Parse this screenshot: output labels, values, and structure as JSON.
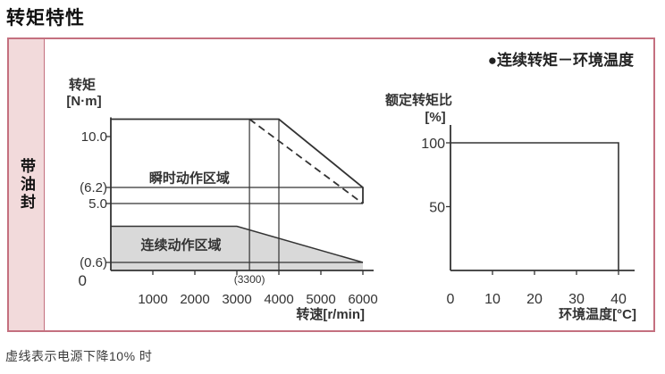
{
  "page": {
    "title": "转矩特性",
    "footnote": "虚线表示电源下降10% 时"
  },
  "table": {
    "row_header": "带油封",
    "border_color": "#c4707f",
    "row_header_bg": "#f2dadb"
  },
  "chart_data": [
    {
      "id": "torque-speed",
      "type": "line",
      "title": "",
      "xlabel": "转速[r/min]",
      "ylabel": [
        "转矩",
        "[N·m]"
      ],
      "x_origin_label": "0",
      "xlim": [
        0,
        6250
      ],
      "ylim": [
        0,
        11.3
      ],
      "x_ticks": [
        {
          "value": 1000,
          "label": "1000"
        },
        {
          "value": 2000,
          "label": "2000"
        },
        {
          "value": 3000,
          "label": "3000"
        },
        {
          "value": 4000,
          "label": "4000"
        },
        {
          "value": 5000,
          "label": "5000"
        },
        {
          "value": 6000,
          "label": "6000"
        }
      ],
      "x_annotation": {
        "value": 3300,
        "label": "(3300)"
      },
      "y_ticks": [
        {
          "value": 10.0,
          "label": "10.0"
        },
        {
          "value": 6.2,
          "label": "(6.2)"
        },
        {
          "value": 5.0,
          "label": "5.0"
        },
        {
          "value": 0.6,
          "label": "(0.6)"
        }
      ],
      "h_lines": [
        6.2,
        5.0,
        0.6
      ],
      "v_lines": [
        3300,
        4000
      ],
      "series": [
        {
          "name": "peak-boundary-solid",
          "style": "solid",
          "points": [
            [
              0,
              11.3
            ],
            [
              4000,
              11.3
            ],
            [
              6000,
              6.2
            ],
            [
              6000,
              5.0
            ]
          ]
        },
        {
          "name": "peak-boundary-dashed-power-drop-10pct",
          "style": "dashed",
          "points": [
            [
              3300,
              11.3
            ],
            [
              6000,
              5.0
            ]
          ]
        },
        {
          "name": "continuous-boundary",
          "style": "solid",
          "fill_to_axis": true,
          "points": [
            [
              0,
              3.3
            ],
            [
              3000,
              3.3
            ],
            [
              6000,
              0.6
            ]
          ]
        }
      ],
      "fill_color": "#d9d9d9",
      "line_color": "#333333",
      "regions": [
        {
          "label": "瞬时动作区域",
          "x": 1700,
          "y": 6.9
        },
        {
          "label": "连续动作区域",
          "x": 1500,
          "y": 1.9
        }
      ]
    },
    {
      "id": "torque-temperature",
      "type": "line",
      "title": "●连续转矩－环境温度",
      "xlabel": "环境温度[°C]",
      "ylabel": [
        "额定转矩比",
        "[%]"
      ],
      "xlim": [
        0,
        44
      ],
      "ylim": [
        0,
        114
      ],
      "x_ticks": [
        {
          "value": 0,
          "label": "0"
        },
        {
          "value": 10,
          "label": "10"
        },
        {
          "value": 20,
          "label": "20"
        },
        {
          "value": 30,
          "label": "30"
        },
        {
          "value": 40,
          "label": "40"
        }
      ],
      "y_ticks": [
        {
          "value": 100,
          "label": "100"
        },
        {
          "value": 50,
          "label": "50"
        }
      ],
      "series": [
        {
          "name": "rated-torque-ratio",
          "style": "solid",
          "points": [
            [
              0,
              100
            ],
            [
              40,
              100
            ],
            [
              40,
              0
            ]
          ]
        }
      ],
      "line_color": "#333333"
    }
  ]
}
